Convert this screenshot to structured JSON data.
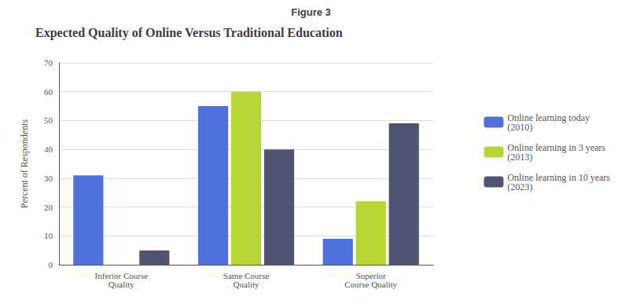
{
  "chart_data": {
    "type": "bar",
    "annotations": [
      "Figure 3"
    ],
    "title": "Expected Quality of Online Versus Traditional Education",
    "categories": [
      "Inferior Course\nQuality",
      "Same Course\nQuality",
      "Superior\nCourse Quality"
    ],
    "series": [
      {
        "name": "Online learning today\n(2010)",
        "values": [
          31,
          55,
          9
        ]
      },
      {
        "name": "Online learning in 3 years\n(2013)",
        "values": [
          0,
          60,
          22
        ]
      },
      {
        "name": "Online learning in 10 years\n(2023)",
        "values": [
          5,
          40,
          49
        ]
      }
    ],
    "ylabel": "Percent of Respondents",
    "ylim": [
      0,
      70
    ],
    "yticks": [
      0,
      10,
      20,
      30,
      40,
      50,
      60,
      70
    ],
    "grid": true,
    "legend": "right"
  }
}
